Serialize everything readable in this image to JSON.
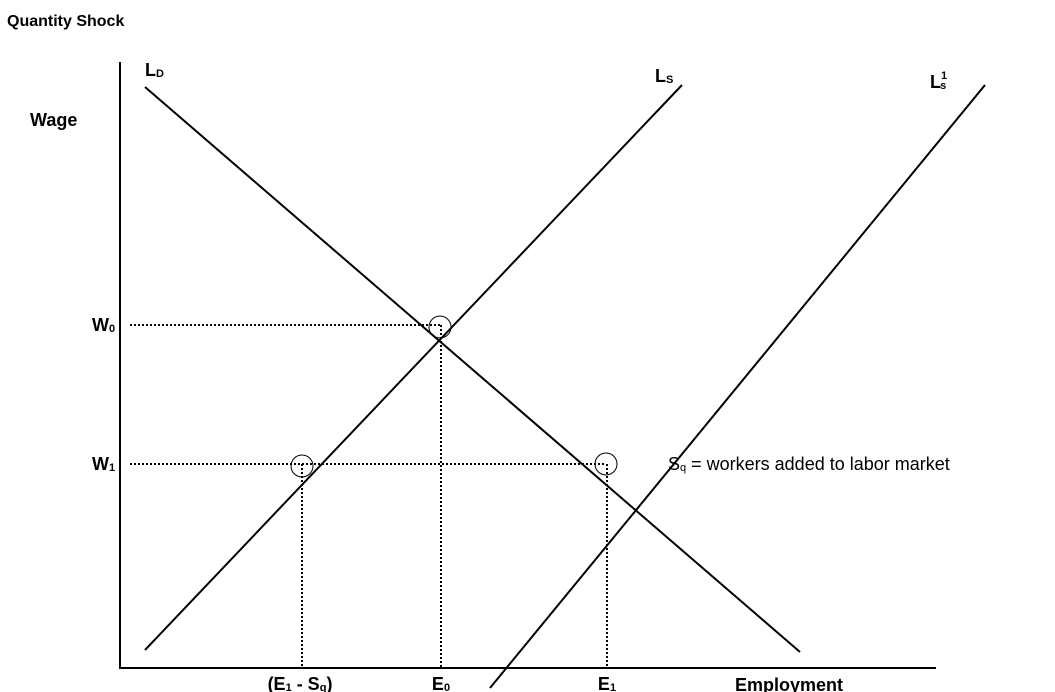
{
  "header": {
    "title": "Quantity Shock"
  },
  "axes": {
    "y_label": "Wage",
    "x_label": "Employment"
  },
  "curves": [
    {
      "parts": [
        {
          "text": "L"
        },
        {
          "sub": "D"
        }
      ]
    },
    {
      "parts": [
        {
          "text": "L"
        },
        {
          "sub": "S"
        }
      ]
    },
    {
      "parts": [
        {
          "text": "L"
        },
        {
          "sup": "1"
        },
        {
          "sub": "s"
        }
      ]
    }
  ],
  "wages": [
    {
      "parts": [
        {
          "text": "W"
        },
        {
          "sub": "0"
        }
      ]
    },
    {
      "parts": [
        {
          "text": "W"
        },
        {
          "sub": "1"
        }
      ]
    }
  ],
  "employment": [
    {
      "parts": [
        {
          "text": "(E"
        },
        {
          "sub": "1"
        },
        {
          "text": " - S"
        },
        {
          "sub": "q"
        },
        {
          "text": ")"
        }
      ]
    },
    {
      "parts": [
        {
          "text": "E"
        },
        {
          "sub": "0"
        }
      ]
    },
    {
      "parts": [
        {
          "text": "E"
        },
        {
          "sub": "1"
        }
      ]
    }
  ],
  "note": {
    "parts": [
      {
        "text": "S"
      },
      {
        "sub": "q"
      },
      {
        "text": " = workers added to labor market"
      }
    ]
  }
}
